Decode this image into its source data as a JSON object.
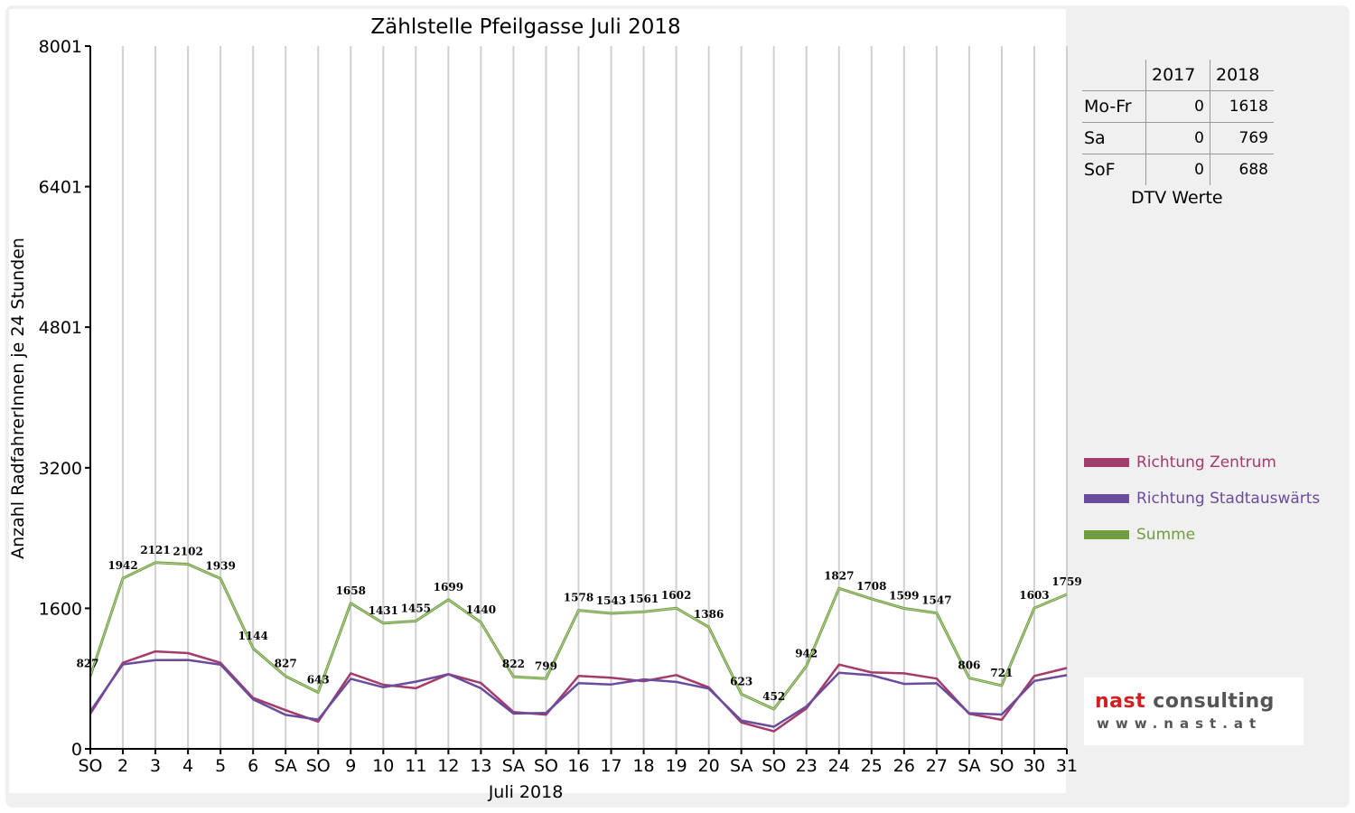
{
  "chart_data": {
    "type": "line",
    "title": "Zählstelle Pfeilgasse Juli 2018",
    "xlabel": "Juli 2018",
    "ylabel": "Anzahl RadfahrerInnen je 24 Stunden",
    "ylim": [
      0,
      8001
    ],
    "yticks": [
      "0",
      "1600",
      "3200",
      "4801",
      "6401",
      "8001"
    ],
    "ytick_values": [
      0,
      1600,
      3200,
      4801,
      6401,
      8001
    ],
    "categories": [
      "SO",
      "2",
      "3",
      "4",
      "5",
      "6",
      "SA",
      "SO",
      "9",
      "10",
      "11",
      "12",
      "13",
      "SA",
      "SO",
      "16",
      "17",
      "18",
      "19",
      "20",
      "SA",
      "SO",
      "23",
      "24",
      "25",
      "26",
      "27",
      "SA",
      "SO",
      "30",
      "31"
    ],
    "category_colors": [
      "#e00000",
      "#000000",
      "#000000",
      "#000000",
      "#000000",
      "#000000",
      "#000000",
      "#e00000",
      "#000000",
      "#000000",
      "#000000",
      "#000000",
      "#000000",
      "#000000",
      "#e00000",
      "#000000",
      "#000000",
      "#000000",
      "#000000",
      "#000000",
      "#000000",
      "#e00000",
      "#000000",
      "#000000",
      "#000000",
      "#000000",
      "#000000",
      "#000000",
      "#e00000",
      "#000000",
      "#000000"
    ],
    "series": [
      {
        "name": "Richtung Zentrum",
        "color": "#a33b6b",
        "values": [
          400,
          980,
          1110,
          1090,
          980,
          580,
          440,
          310,
          860,
          730,
          690,
          850,
          750,
          420,
          390,
          830,
          810,
          770,
          840,
          700,
          300,
          200,
          460,
          960,
          870,
          860,
          800,
          400,
          330,
          830,
          920
        ]
      },
      {
        "name": "Richtung Stadtauswärts",
        "color": "#6a4c9c",
        "values": [
          427,
          962,
          1011,
          1012,
          959,
          564,
          387,
          333,
          798,
          701,
          765,
          849,
          690,
          402,
          409,
          748,
          733,
          791,
          762,
          686,
          323,
          252,
          482,
          867,
          838,
          739,
          747,
          406,
          391,
          773,
          839
        ]
      },
      {
        "name": "Summe",
        "color": "#6f9e3e",
        "values": [
          827,
          1942,
          2121,
          2102,
          1939,
          1144,
          827,
          643,
          1658,
          1431,
          1455,
          1699,
          1440,
          822,
          799,
          1578,
          1543,
          1561,
          1602,
          1386,
          623,
          452,
          942,
          1827,
          1708,
          1599,
          1547,
          806,
          721,
          1603,
          1759
        ]
      }
    ],
    "data_labels": [
      "827",
      "1942",
      "2121",
      "2102",
      "1939",
      "1144",
      "827",
      "643",
      "1658",
      "1431",
      "1455",
      "1699",
      "1440",
      "822",
      "799",
      "1578",
      "1543",
      "1561",
      "1602",
      "1386",
      "623",
      "452",
      "942",
      "1827",
      "1708",
      "1599",
      "1547",
      "806",
      "721",
      "1603",
      "1759"
    ],
    "grid": true,
    "legend_position": "right"
  },
  "dtv": {
    "columns": [
      "2017",
      "2018"
    ],
    "rows": [
      {
        "label": "Mo-Fr",
        "v2017": "0",
        "v2018": "1618"
      },
      {
        "label": "Sa",
        "v2017": "0",
        "v2018": "769"
      },
      {
        "label": "SoF",
        "v2017": "0",
        "v2018": "688"
      }
    ],
    "caption": "DTV Werte"
  },
  "logo": {
    "brand_part1": "nast",
    "brand_part2": " consulting",
    "url": "www.nast.at"
  }
}
